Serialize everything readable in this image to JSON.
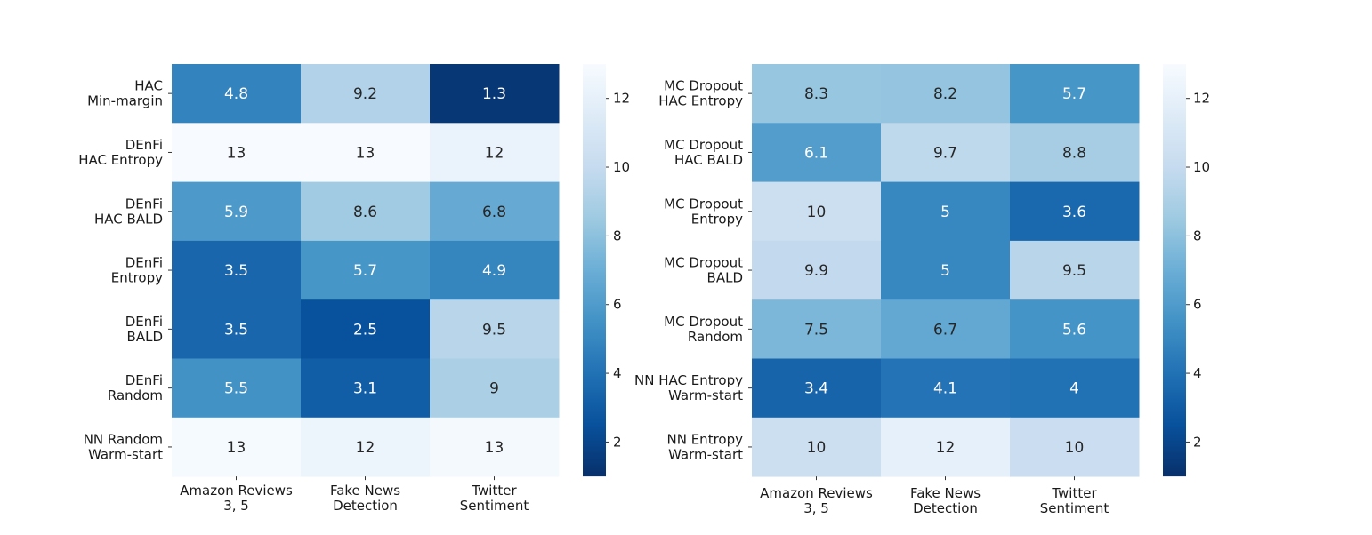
{
  "chart_data": [
    {
      "type": "heatmap",
      "title": "",
      "xlabel": "",
      "ylabel": "",
      "colormap": "Blues_r",
      "vmin": 1.0,
      "vmax": 13.0,
      "colorbar_ticks": [
        "2",
        "4",
        "6",
        "8",
        "10",
        "12"
      ],
      "x_categories": [
        [
          "Amazon Reviews",
          "3, 5"
        ],
        [
          "Fake News",
          "Detection"
        ],
        [
          "Twitter",
          "Sentiment"
        ]
      ],
      "y_categories": [
        [
          "HAC",
          "Min-margin"
        ],
        [
          "DEnFi",
          "HAC Entropy"
        ],
        [
          "DEnFi",
          "HAC BALD"
        ],
        [
          "DEnFi",
          "Entropy"
        ],
        [
          "DEnFi",
          "BALD"
        ],
        [
          "DEnFi",
          "Random"
        ],
        [
          "NN Random",
          "Warm-start"
        ]
      ],
      "values": [
        [
          4.8,
          9.2,
          1.3
        ],
        [
          13.0,
          13.0,
          12.2
        ],
        [
          5.9,
          8.6,
          6.8
        ],
        [
          3.5,
          5.7,
          4.9
        ],
        [
          3.5,
          2.5,
          9.5
        ],
        [
          5.5,
          3.1,
          9.0
        ],
        [
          12.9,
          12.4,
          12.8
        ]
      ],
      "labels": [
        [
          "4.8",
          "9.2",
          "1.3"
        ],
        [
          "13",
          "13",
          "12"
        ],
        [
          "5.9",
          "8.6",
          "6.8"
        ],
        [
          "3.5",
          "5.7",
          "4.9"
        ],
        [
          "3.5",
          "2.5",
          "9.5"
        ],
        [
          "5.5",
          "3.1",
          "9"
        ],
        [
          "13",
          "12",
          "13"
        ]
      ]
    },
    {
      "type": "heatmap",
      "title": "",
      "xlabel": "",
      "ylabel": "",
      "colormap": "Blues_r",
      "vmin": 1.0,
      "vmax": 13.0,
      "colorbar_ticks": [
        "2",
        "4",
        "6",
        "8",
        "10",
        "12"
      ],
      "x_categories": [
        [
          "Amazon Reviews",
          "3, 5"
        ],
        [
          "Fake News",
          "Detection"
        ],
        [
          "Twitter",
          "Sentiment"
        ]
      ],
      "y_categories": [
        [
          "MC Dropout",
          "HAC Entropy"
        ],
        [
          "MC Dropout",
          "HAC BALD"
        ],
        [
          "MC Dropout",
          "Entropy"
        ],
        [
          "MC Dropout",
          "BALD"
        ],
        [
          "MC Dropout",
          "Random"
        ],
        [
          "NN HAC Entropy",
          "Warm-start"
        ],
        [
          "NN Entropy",
          "Warm-start"
        ]
      ],
      "values": [
        [
          8.3,
          8.2,
          5.7
        ],
        [
          6.1,
          9.7,
          8.8
        ],
        [
          10.4,
          5.0,
          3.6
        ],
        [
          9.9,
          5.0,
          9.5
        ],
        [
          7.5,
          6.7,
          5.6
        ],
        [
          3.4,
          4.1,
          4.0
        ],
        [
          10.4,
          12.0,
          10.3
        ]
      ],
      "labels": [
        [
          "8.3",
          "8.2",
          "5.7"
        ],
        [
          "6.1",
          "9.7",
          "8.8"
        ],
        [
          "10",
          "5",
          "3.6"
        ],
        [
          "9.9",
          "5",
          "9.5"
        ],
        [
          "7.5",
          "6.7",
          "5.6"
        ],
        [
          "3.4",
          "4.1",
          "4"
        ],
        [
          "10",
          "12",
          "10"
        ]
      ]
    }
  ]
}
